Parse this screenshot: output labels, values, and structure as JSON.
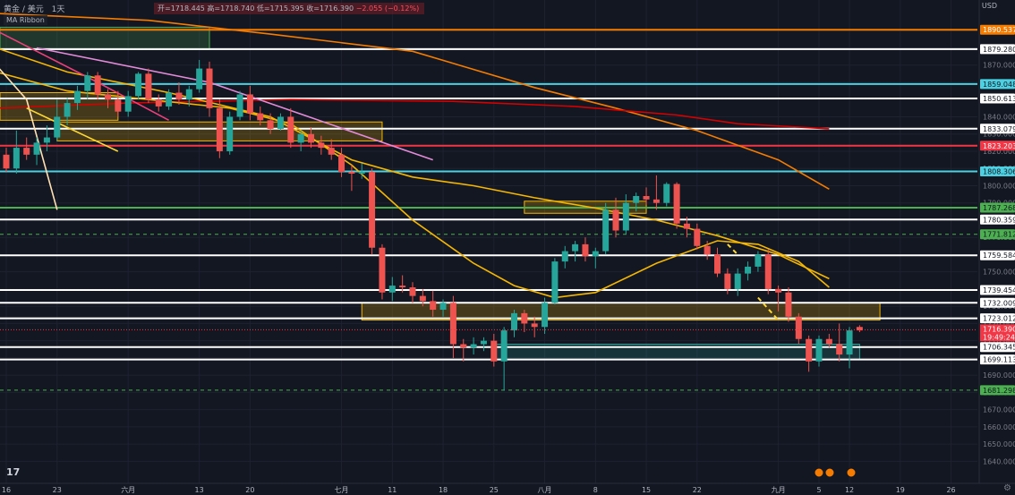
{
  "legend": {
    "symbol": "黄金 / 美元",
    "interval": "1天",
    "ribbon": "MA Ribbon",
    "ohlc": {
      "open": "开=1718.445",
      "high": "高=1718.740",
      "low": "低=1715.395",
      "close": "收=1716.390",
      "change": "−2.055 (−0.12%)"
    }
  },
  "axis_unit": "USD",
  "colors": {
    "background": "#131722",
    "up": "#26a69a",
    "down": "#ef5350",
    "grid": "#1e2230",
    "orange_ma": "#f57c00",
    "red_ma": "#d50000",
    "yellow_ma": "#f5b700",
    "pink_trend": "#e38bd9",
    "price_tag": "#f23645"
  },
  "chart_data": {
    "type": "candlestick",
    "ylim": [
      1635,
      1900
    ],
    "y_ticks": [
      1640,
      1650,
      1660,
      1670,
      1680,
      1690,
      1700,
      1710,
      1720,
      1730,
      1740,
      1750,
      1760,
      1770,
      1780,
      1790,
      1800,
      1810,
      1820,
      1830,
      1840,
      1850,
      1860,
      1870,
      1880,
      1890
    ],
    "x_ticks": [
      {
        "label": "16",
        "bar": 0
      },
      {
        "label": "23",
        "bar": 5
      },
      {
        "label": "六月",
        "bar": 12
      },
      {
        "label": "13",
        "bar": 19
      },
      {
        "label": "20",
        "bar": 24
      },
      {
        "label": "七月",
        "bar": 33
      },
      {
        "label": "11",
        "bar": 38
      },
      {
        "label": "18",
        "bar": 43
      },
      {
        "label": "25",
        "bar": 48
      },
      {
        "label": "八月",
        "bar": 53
      },
      {
        "label": "8",
        "bar": 58
      },
      {
        "label": "15",
        "bar": 63
      },
      {
        "label": "22",
        "bar": 68
      },
      {
        "label": "九月",
        "bar": 76
      },
      {
        "label": "5",
        "bar": 80
      },
      {
        "label": "12",
        "bar": 83
      },
      {
        "label": "19",
        "bar": 88
      },
      {
        "label": "26",
        "bar": 93
      }
    ],
    "candles": [
      {
        "o": 1818,
        "h": 1822,
        "l": 1808,
        "c": 1810
      },
      {
        "o": 1810,
        "h": 1832,
        "l": 1807,
        "c": 1822
      },
      {
        "o": 1822,
        "h": 1828,
        "l": 1815,
        "c": 1818
      },
      {
        "o": 1818,
        "h": 1828,
        "l": 1812,
        "c": 1825
      },
      {
        "o": 1825,
        "h": 1835,
        "l": 1820,
        "c": 1828
      },
      {
        "o": 1828,
        "h": 1850,
        "l": 1826,
        "c": 1840
      },
      {
        "o": 1840,
        "h": 1851,
        "l": 1835,
        "c": 1848
      },
      {
        "o": 1848,
        "h": 1858,
        "l": 1844,
        "c": 1855
      },
      {
        "o": 1855,
        "h": 1866,
        "l": 1850,
        "c": 1864
      },
      {
        "o": 1864,
        "h": 1866,
        "l": 1850,
        "c": 1853
      },
      {
        "o": 1853,
        "h": 1856,
        "l": 1845,
        "c": 1850
      },
      {
        "o": 1850,
        "h": 1855,
        "l": 1840,
        "c": 1843
      },
      {
        "o": 1843,
        "h": 1855,
        "l": 1840,
        "c": 1852
      },
      {
        "o": 1852,
        "h": 1866,
        "l": 1850,
        "c": 1865
      },
      {
        "o": 1865,
        "h": 1868,
        "l": 1848,
        "c": 1850
      },
      {
        "o": 1850,
        "h": 1853,
        "l": 1843,
        "c": 1846
      },
      {
        "o": 1846,
        "h": 1856,
        "l": 1844,
        "c": 1854
      },
      {
        "o": 1854,
        "h": 1860,
        "l": 1847,
        "c": 1850
      },
      {
        "o": 1850,
        "h": 1858,
        "l": 1846,
        "c": 1856
      },
      {
        "o": 1856,
        "h": 1873,
        "l": 1854,
        "c": 1868
      },
      {
        "o": 1868,
        "h": 1872,
        "l": 1840,
        "c": 1845
      },
      {
        "o": 1845,
        "h": 1850,
        "l": 1816,
        "c": 1820
      },
      {
        "o": 1820,
        "h": 1843,
        "l": 1818,
        "c": 1840
      },
      {
        "o": 1840,
        "h": 1855,
        "l": 1838,
        "c": 1853
      },
      {
        "o": 1853,
        "h": 1858,
        "l": 1838,
        "c": 1842
      },
      {
        "o": 1842,
        "h": 1846,
        "l": 1835,
        "c": 1838
      },
      {
        "o": 1838,
        "h": 1842,
        "l": 1830,
        "c": 1833
      },
      {
        "o": 1833,
        "h": 1842,
        "l": 1832,
        "c": 1840
      },
      {
        "o": 1840,
        "h": 1845,
        "l": 1822,
        "c": 1825
      },
      {
        "o": 1825,
        "h": 1832,
        "l": 1820,
        "c": 1830
      },
      {
        "o": 1830,
        "h": 1834,
        "l": 1822,
        "c": 1825
      },
      {
        "o": 1825,
        "h": 1829,
        "l": 1818,
        "c": 1822
      },
      {
        "o": 1822,
        "h": 1827,
        "l": 1815,
        "c": 1818
      },
      {
        "o": 1818,
        "h": 1822,
        "l": 1805,
        "c": 1808
      },
      {
        "o": 1808,
        "h": 1812,
        "l": 1797,
        "c": 1807
      },
      {
        "o": 1807,
        "h": 1813,
        "l": 1804,
        "c": 1808
      },
      {
        "o": 1808,
        "h": 1810,
        "l": 1760,
        "c": 1764
      },
      {
        "o": 1764,
        "h": 1766,
        "l": 1734,
        "c": 1738
      },
      {
        "o": 1738,
        "h": 1747,
        "l": 1733,
        "c": 1742
      },
      {
        "o": 1742,
        "h": 1748,
        "l": 1738,
        "c": 1741
      },
      {
        "o": 1741,
        "h": 1744,
        "l": 1732,
        "c": 1736
      },
      {
        "o": 1736,
        "h": 1740,
        "l": 1730,
        "c": 1733
      },
      {
        "o": 1733,
        "h": 1739,
        "l": 1724,
        "c": 1728
      },
      {
        "o": 1728,
        "h": 1734,
        "l": 1724,
        "c": 1732
      },
      {
        "o": 1732,
        "h": 1736,
        "l": 1700,
        "c": 1708
      },
      {
        "o": 1708,
        "h": 1711,
        "l": 1698,
        "c": 1706
      },
      {
        "o": 1706,
        "h": 1712,
        "l": 1702,
        "c": 1708
      },
      {
        "o": 1708,
        "h": 1712,
        "l": 1704,
        "c": 1710
      },
      {
        "o": 1710,
        "h": 1714,
        "l": 1695,
        "c": 1698
      },
      {
        "o": 1698,
        "h": 1718,
        "l": 1681,
        "c": 1716
      },
      {
        "o": 1716,
        "h": 1728,
        "l": 1712,
        "c": 1726
      },
      {
        "o": 1726,
        "h": 1728,
        "l": 1715,
        "c": 1720
      },
      {
        "o": 1720,
        "h": 1724,
        "l": 1712,
        "c": 1718
      },
      {
        "o": 1718,
        "h": 1735,
        "l": 1714,
        "c": 1732
      },
      {
        "o": 1732,
        "h": 1758,
        "l": 1731,
        "c": 1756
      },
      {
        "o": 1756,
        "h": 1765,
        "l": 1752,
        "c": 1762
      },
      {
        "o": 1762,
        "h": 1768,
        "l": 1756,
        "c": 1766
      },
      {
        "o": 1766,
        "h": 1770,
        "l": 1756,
        "c": 1759
      },
      {
        "o": 1759,
        "h": 1764,
        "l": 1752,
        "c": 1762
      },
      {
        "o": 1762,
        "h": 1790,
        "l": 1760,
        "c": 1786
      },
      {
        "o": 1786,
        "h": 1793,
        "l": 1770,
        "c": 1774
      },
      {
        "o": 1774,
        "h": 1795,
        "l": 1772,
        "c": 1790
      },
      {
        "o": 1790,
        "h": 1796,
        "l": 1785,
        "c": 1794
      },
      {
        "o": 1794,
        "h": 1799,
        "l": 1789,
        "c": 1792
      },
      {
        "o": 1792,
        "h": 1806,
        "l": 1786,
        "c": 1790
      },
      {
        "o": 1790,
        "h": 1802,
        "l": 1788,
        "c": 1801
      },
      {
        "o": 1801,
        "h": 1802,
        "l": 1775,
        "c": 1778
      },
      {
        "o": 1778,
        "h": 1782,
        "l": 1770,
        "c": 1775
      },
      {
        "o": 1775,
        "h": 1778,
        "l": 1763,
        "c": 1765
      },
      {
        "o": 1765,
        "h": 1768,
        "l": 1757,
        "c": 1760
      },
      {
        "o": 1760,
        "h": 1764,
        "l": 1747,
        "c": 1749
      },
      {
        "o": 1749,
        "h": 1752,
        "l": 1737,
        "c": 1740
      },
      {
        "o": 1740,
        "h": 1752,
        "l": 1736,
        "c": 1749
      },
      {
        "o": 1749,
        "h": 1756,
        "l": 1745,
        "c": 1753
      },
      {
        "o": 1753,
        "h": 1762,
        "l": 1750,
        "c": 1760
      },
      {
        "o": 1760,
        "h": 1763,
        "l": 1737,
        "c": 1740
      },
      {
        "o": 1740,
        "h": 1742,
        "l": 1727,
        "c": 1738
      },
      {
        "o": 1738,
        "h": 1741,
        "l": 1721,
        "c": 1724
      },
      {
        "o": 1724,
        "h": 1726,
        "l": 1708,
        "c": 1711
      },
      {
        "o": 1711,
        "h": 1713,
        "l": 1692,
        "c": 1698
      },
      {
        "o": 1698,
        "h": 1713,
        "l": 1695,
        "c": 1711
      },
      {
        "o": 1711,
        "h": 1714,
        "l": 1706,
        "c": 1708
      },
      {
        "o": 1708,
        "h": 1720,
        "l": 1698,
        "c": 1702
      },
      {
        "o": 1702,
        "h": 1718,
        "l": 1694,
        "c": 1716
      },
      {
        "o": 1718,
        "h": 1719,
        "l": 1715,
        "c": 1716
      }
    ],
    "horizontal_levels": [
      {
        "label": "1890.537",
        "value": 1890.537,
        "color": "#f57c00",
        "style": "solid"
      },
      {
        "label": "1879.280",
        "value": 1879.28,
        "color": "#ffffff",
        "style": "solid"
      },
      {
        "label": "1859.048",
        "value": 1859.048,
        "color": "#4dd0e1",
        "style": "solid"
      },
      {
        "label": "1850.613",
        "value": 1850.613,
        "color": "#ffffff",
        "style": "solid"
      },
      {
        "label": "1833.079",
        "value": 1833.079,
        "color": "#ffffff",
        "style": "solid"
      },
      {
        "label": "1823.203",
        "value": 1823.203,
        "color": "#f23645",
        "style": "solid"
      },
      {
        "label": "1808.306",
        "value": 1808.306,
        "color": "#4dd0e1",
        "style": "solid"
      },
      {
        "label": "1787.268",
        "value": 1787.268,
        "color": "#4caf50",
        "style": "solid"
      },
      {
        "label": "1780.359",
        "value": 1780.359,
        "color": "#ffffff",
        "style": "solid"
      },
      {
        "label": "1771.812",
        "value": 1771.812,
        "color": "#4caf50",
        "style": "dashed"
      },
      {
        "label": "1759.584",
        "value": 1759.584,
        "color": "#ffffff",
        "style": "solid"
      },
      {
        "label": "1739.454",
        "value": 1739.454,
        "color": "#ffffff",
        "style": "solid"
      },
      {
        "label": "1732.009",
        "value": 1732.009,
        "color": "#ffffff",
        "style": "solid"
      },
      {
        "label": "1723.012",
        "value": 1723.012,
        "color": "#ffffff",
        "style": "solid"
      },
      {
        "label": "1706.345",
        "value": 1706.345,
        "color": "#ffffff",
        "style": "solid"
      },
      {
        "label": "1699.113",
        "value": 1699.113,
        "color": "#ffffff",
        "style": "solid"
      },
      {
        "label": "1681.298",
        "value": 1681.298,
        "color": "#4caf50",
        "style": "dashed"
      }
    ],
    "current_price": {
      "label": "1716.390",
      "countdown": "19:49:24",
      "value": 1716.39
    },
    "zones": [
      {
        "x0": -1,
        "x1": 11,
        "top": 1854,
        "bottom": 1838,
        "fill": "rgba(245,183,0,0.22)",
        "stroke": "#f5b700"
      },
      {
        "x0": -1,
        "x1": 20,
        "top": 1892,
        "bottom": 1879,
        "fill": "rgba(76,175,80,0.22)",
        "stroke": "#4caf50"
      },
      {
        "x0": 5,
        "x1": 37,
        "top": 1837,
        "bottom": 1826,
        "fill": "rgba(245,183,0,0.22)",
        "stroke": "#f5b700"
      },
      {
        "x0": 51,
        "x1": 63,
        "top": 1791,
        "bottom": 1784,
        "fill": "rgba(245,183,0,0.22)",
        "stroke": "#f5b700"
      },
      {
        "x0": 35,
        "x1": 86,
        "top": 1732,
        "bottom": 1722,
        "fill": "rgba(245,183,0,0.22)",
        "stroke": "#f5b700"
      },
      {
        "x0": 48,
        "x1": 84,
        "top": 1708,
        "bottom": 1699,
        "fill": "rgba(38,166,154,0.20)",
        "stroke": "#26a69a"
      }
    ],
    "moving_averages": [
      {
        "color": "#f57c00",
        "points": [
          [
            -1,
            1900
          ],
          [
            14,
            1896
          ],
          [
            26,
            1888
          ],
          [
            40,
            1878
          ],
          [
            52,
            1857
          ],
          [
            60,
            1845
          ],
          [
            68,
            1832
          ],
          [
            76,
            1815
          ],
          [
            81,
            1798
          ]
        ]
      },
      {
        "color": "#d50000",
        "points": [
          [
            -1,
            1845
          ],
          [
            12,
            1848
          ],
          [
            28,
            1850
          ],
          [
            44,
            1849
          ],
          [
            56,
            1846
          ],
          [
            66,
            1841
          ],
          [
            72,
            1836
          ],
          [
            81,
            1833
          ]
        ]
      },
      {
        "color": "#f5b700",
        "points": [
          [
            -1,
            1880
          ],
          [
            6,
            1866
          ],
          [
            16,
            1854
          ],
          [
            26,
            1840
          ],
          [
            34,
            1815
          ],
          [
            40,
            1805
          ],
          [
            46,
            1800
          ],
          [
            52,
            1793
          ],
          [
            58,
            1787
          ],
          [
            64,
            1780
          ],
          [
            70,
            1771
          ],
          [
            76,
            1760
          ],
          [
            81,
            1746
          ]
        ]
      },
      {
        "color": "#f5b700",
        "points": [
          [
            -1,
            1866
          ],
          [
            6,
            1855
          ],
          [
            14,
            1850
          ],
          [
            22,
            1845
          ],
          [
            28,
            1836
          ],
          [
            34,
            1812
          ],
          [
            40,
            1780
          ],
          [
            46,
            1755
          ],
          [
            50,
            1742
          ],
          [
            54,
            1735
          ],
          [
            58,
            1738
          ],
          [
            64,
            1755
          ],
          [
            70,
            1768
          ],
          [
            74,
            1766
          ],
          [
            78,
            1756
          ],
          [
            81,
            1741
          ]
        ]
      },
      {
        "color": "#ffe0b2",
        "points": [
          [
            -1,
            1870
          ],
          [
            2,
            1850
          ],
          [
            5,
            1786
          ]
        ]
      },
      {
        "color": "#e38bd9",
        "points": [
          [
            3,
            1880
          ],
          [
            20,
            1860
          ],
          [
            42,
            1815
          ]
        ]
      },
      {
        "color": "#ec407a",
        "points": [
          [
            -1,
            1890
          ],
          [
            9,
            1860
          ],
          [
            16,
            1838
          ]
        ]
      },
      {
        "color": "#fdd835",
        "points": [
          [
            2,
            1845
          ],
          [
            11,
            1820
          ]
        ]
      },
      {
        "color": "#fdd835",
        "dash": true,
        "points": [
          [
            71,
            1766
          ],
          [
            72,
            1760
          ]
        ]
      },
      {
        "color": "#fdd835",
        "dash": true,
        "points": [
          [
            74,
            1735
          ],
          [
            76,
            1722
          ]
        ]
      }
    ]
  }
}
